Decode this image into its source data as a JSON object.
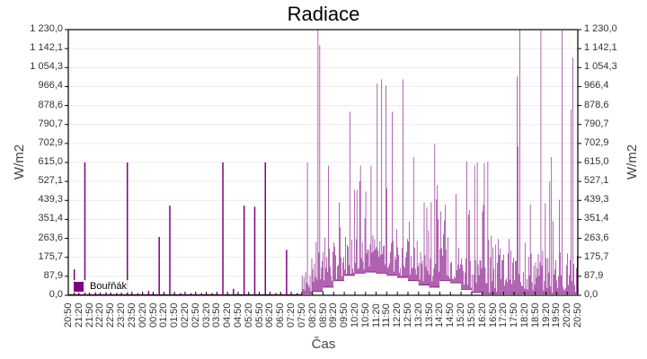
{
  "chart_data": {
    "type": "bar",
    "title": "Radiace",
    "xlabel": "Čas",
    "ylabel": "W/m2",
    "ylabel_right": "W/m2",
    "ylim": [
      0,
      1230.0
    ],
    "grid": true,
    "legend_position": "bottom-left inside plot",
    "series_color": "#7f007f",
    "y_ticks": [
      "1 230,0",
      "1 142,1",
      "1 054,3",
      "966,4",
      "878,6",
      "790,7",
      "702,9",
      "615,0",
      "527,1",
      "439,3",
      "351,4",
      "263,6",
      "175,7",
      "87,9",
      "0,0"
    ],
    "y_tick_values": [
      1230.0,
      1142.1,
      1054.3,
      966.4,
      878.6,
      790.7,
      702.9,
      615.0,
      527.1,
      439.3,
      351.4,
      263.6,
      175.7,
      87.9,
      0.0
    ],
    "x_ticks": [
      "20:50",
      "21:20",
      "21:50",
      "22:20",
      "22:50",
      "23:20",
      "23:50",
      "00:20",
      "00:50",
      "01:20",
      "01:50",
      "02:20",
      "02:50",
      "03:20",
      "03:50",
      "04:20",
      "04:50",
      "05:20",
      "05:50",
      "06:20",
      "06:50",
      "07:20",
      "07:50",
      "08:20",
      "08:50",
      "09:20",
      "09:50",
      "10:20",
      "10:50",
      "11:20",
      "11:50",
      "12:20",
      "12:50",
      "13:20",
      "13:50",
      "14:20",
      "14:50",
      "15:20",
      "15:50",
      "16:20",
      "16:50",
      "17:20",
      "17:50",
      "18:20",
      "18:50",
      "19:20",
      "19:50",
      "20:20",
      "20:50"
    ],
    "series": [
      {
        "name": "Bouřňák",
        "note": "Approximate per-interval values (W/m2): baseline (lower envelope) and spike (upper envelope) per 30-min tick slot, read from the plot",
        "baseline": [
          5,
          5,
          5,
          5,
          5,
          5,
          5,
          5,
          5,
          5,
          5,
          5,
          5,
          5,
          5,
          5,
          5,
          5,
          5,
          5,
          5,
          5,
          10,
          20,
          40,
          70,
          95,
          105,
          110,
          105,
          95,
          85,
          70,
          50,
          40,
          70,
          60,
          30,
          15,
          10,
          10,
          10,
          10,
          10,
          10,
          10,
          10,
          10,
          10
        ],
        "peaks": [
          120,
          615,
          30,
          20,
          10,
          615,
          10,
          20,
          270,
          415,
          10,
          10,
          10,
          10,
          615,
          30,
          415,
          410,
          615,
          10,
          210,
          10,
          615,
          1230,
          600,
          430,
          850,
          600,
          600,
          1000,
          850,
          1000,
          640,
          430,
          700,
          420,
          470,
          620,
          615,
          620,
          260,
          260,
          1230,
          420,
          1230,
          640,
          1230,
          1100,
          640
        ],
        "typical_busy": [
          0,
          0,
          0,
          0,
          0,
          0,
          0,
          0,
          0,
          0,
          0,
          0,
          0,
          0,
          0,
          0,
          0,
          0,
          0,
          0,
          0,
          0,
          175,
          250,
          250,
          250,
          290,
          300,
          300,
          290,
          270,
          270,
          260,
          230,
          200,
          220,
          240,
          210,
          200,
          200,
          210,
          210,
          210,
          210,
          210,
          210,
          210,
          210,
          200
        ]
      }
    ]
  },
  "legend": {
    "items": [
      {
        "label": "Bouřňák",
        "color": "#7f007f"
      }
    ]
  }
}
